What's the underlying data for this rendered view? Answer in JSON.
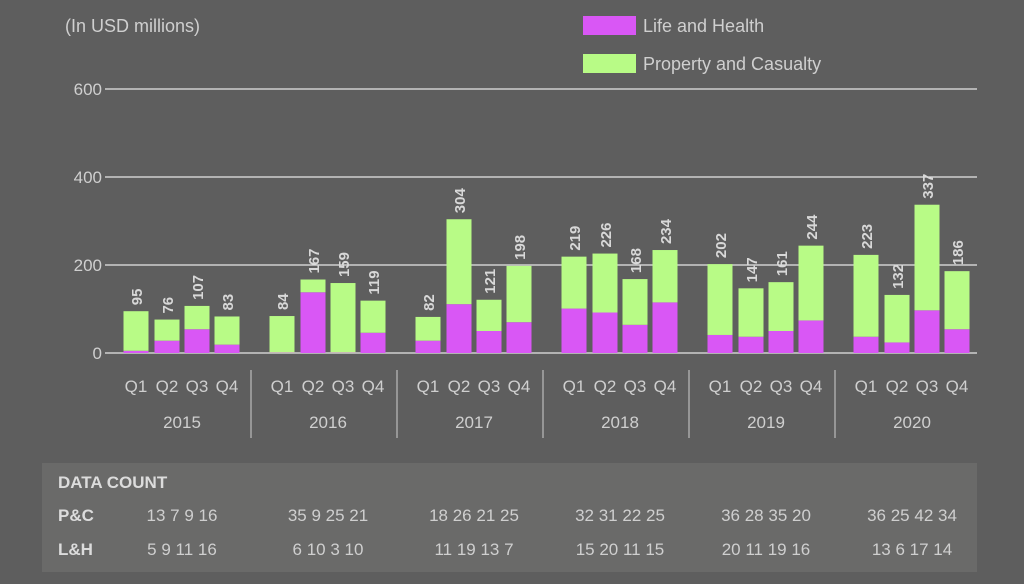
{
  "chart_data": {
    "type": "bar",
    "stacked": true,
    "unit_note": "(In USD millions)",
    "years": [
      "2015",
      "2016",
      "2017",
      "2018",
      "2019",
      "2020"
    ],
    "quarters": [
      "Q1",
      "Q2",
      "Q3",
      "Q4"
    ],
    "ylim": [
      0,
      600
    ],
    "yticks": [
      0,
      200,
      400,
      600
    ],
    "grid": true,
    "legend_position": "top-right",
    "series": [
      {
        "name": "Life and Health",
        "color": "#d957f5",
        "values": [
          5,
          28,
          54,
          19,
          1,
          138,
          1,
          46,
          28,
          111,
          50,
          70,
          101,
          92,
          64,
          115,
          41,
          37,
          50,
          74,
          37,
          24,
          97,
          54
        ]
      },
      {
        "name": "Property and Casualty",
        "color": "#b8fb86",
        "values": [
          90,
          48,
          53,
          64,
          83,
          29,
          158,
          73,
          54,
          193,
          71,
          128,
          118,
          134,
          104,
          119,
          161,
          110,
          111,
          170,
          186,
          108,
          240,
          132
        ]
      }
    ],
    "totals": [
      95,
      76,
      107,
      83,
      84,
      167,
      159,
      119,
      82,
      304,
      121,
      198,
      219,
      226,
      168,
      234,
      202,
      147,
      161,
      244,
      223,
      132,
      337,
      186
    ]
  },
  "data_count": {
    "title": "DATA COUNT",
    "pc_label": "P&C",
    "lh_label": "L&H",
    "pc": [
      "13 7 9 16",
      "35 9 25 21",
      "18 26 21 25",
      "32 31 22 25",
      "36 28 35 20",
      "36 25 42 34"
    ],
    "lh": [
      "5 9 11 16",
      "6 10 3 10",
      "11 19 13 7",
      "15 20 11 15",
      "20 11 19 16",
      "13 6 17 14"
    ]
  }
}
